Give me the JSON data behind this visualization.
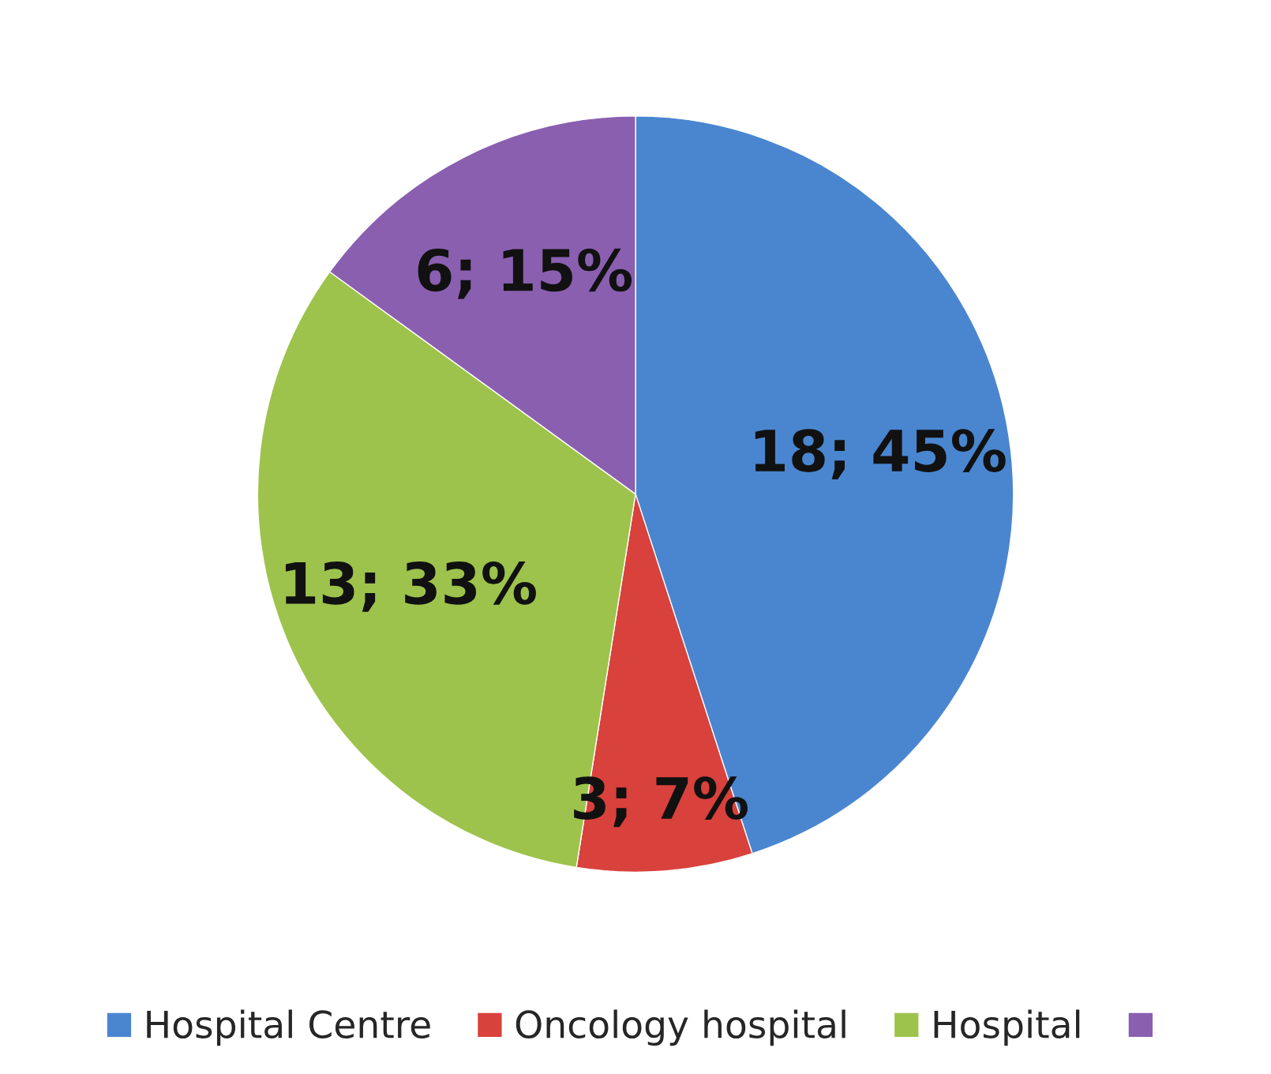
{
  "chart_data": {
    "type": "pie",
    "categories": [
      "Hospital Centre",
      "Oncology hospital",
      "Hospital",
      null
    ],
    "values": [
      18,
      3,
      13,
      6
    ],
    "value_labels": [
      "18; 45%",
      "3; 7%",
      "13; 33%",
      "6; 15%"
    ],
    "colors": [
      "#4a86d0",
      "#d9413c",
      "#9dc34c",
      "#8a5fb0"
    ],
    "legend": "bottom"
  }
}
